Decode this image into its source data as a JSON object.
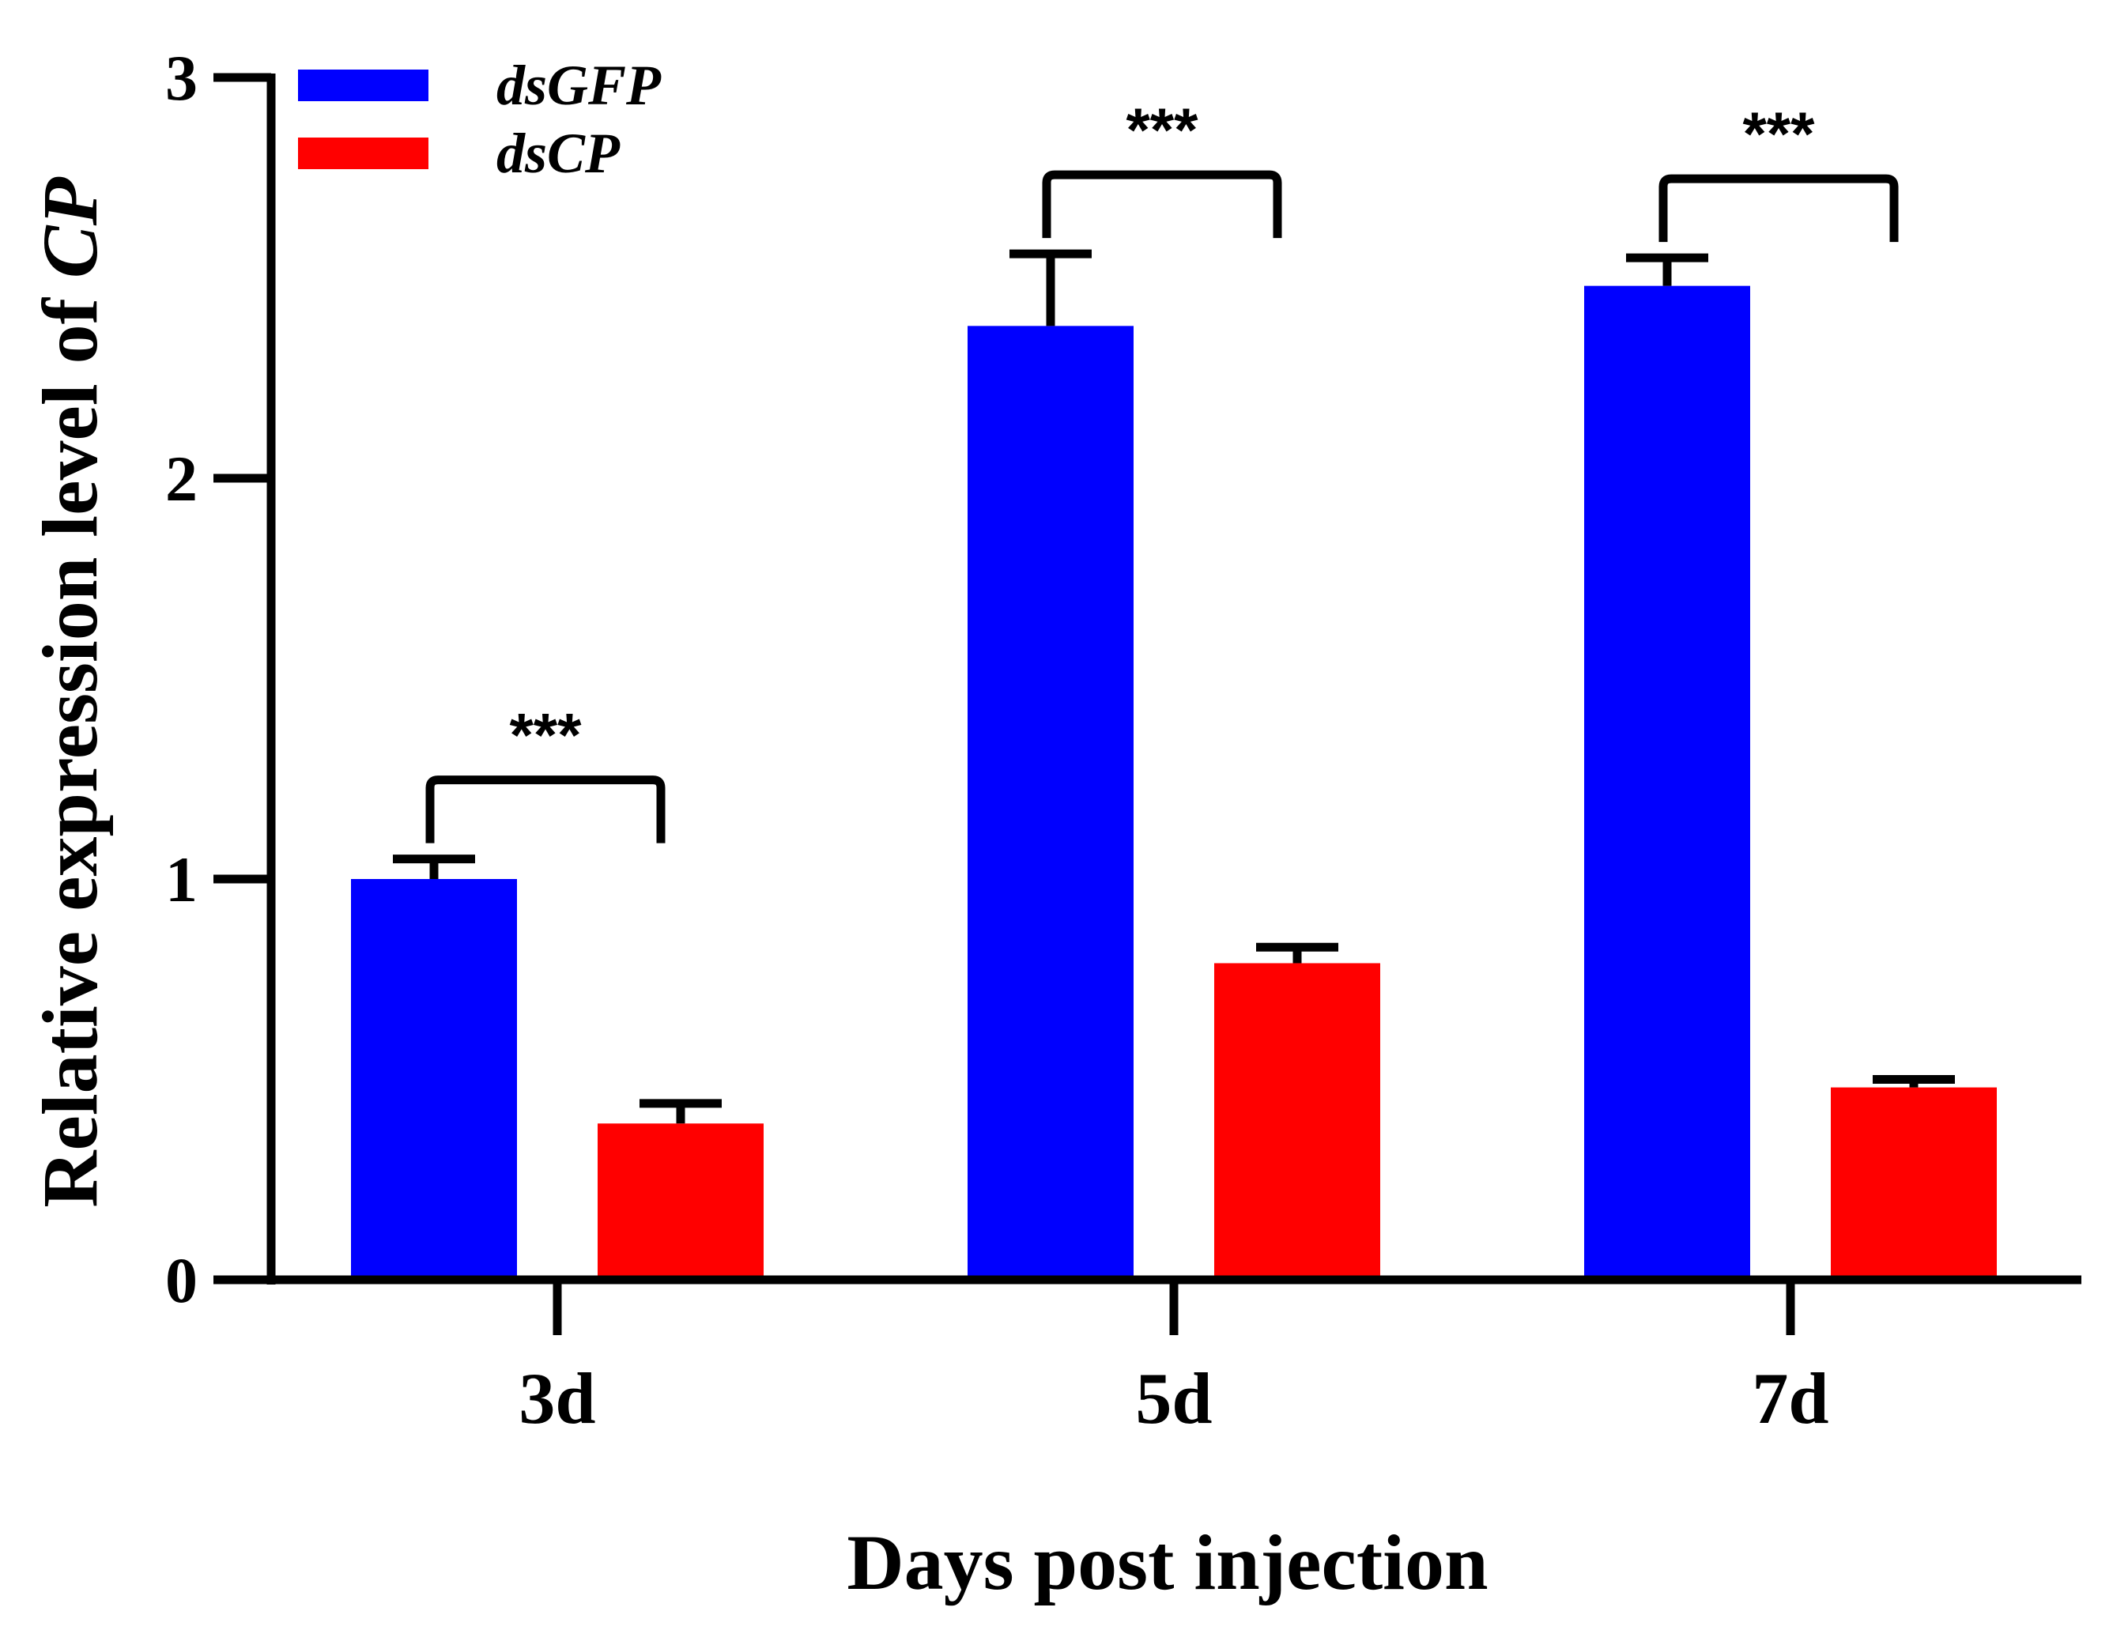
{
  "chart_data": {
    "type": "bar",
    "title": "",
    "xlabel": "Days post injection",
    "ylabel_prefix": "Relative expression level of ",
    "ylabel_gene": "CP",
    "ylim": [
      0,
      3
    ],
    "yticks": [
      "0",
      "1",
      "2",
      "3"
    ],
    "categories": [
      "3d",
      "5d",
      "7d"
    ],
    "series": [
      {
        "name": "dsGFP",
        "color": "#0000FF",
        "values": [
          1.0,
          2.38,
          2.48
        ],
        "errors": [
          0.05,
          0.18,
          0.07
        ]
      },
      {
        "name": "dsCP",
        "color": "#FF0000",
        "values": [
          0.39,
          0.79,
          0.48
        ],
        "errors": [
          0.05,
          0.04,
          0.02
        ]
      }
    ],
    "significance": [
      {
        "category": "3d",
        "label": "***"
      },
      {
        "category": "5d",
        "label": "***"
      },
      {
        "category": "7d",
        "label": "***"
      }
    ],
    "legend_position": "top-left"
  }
}
